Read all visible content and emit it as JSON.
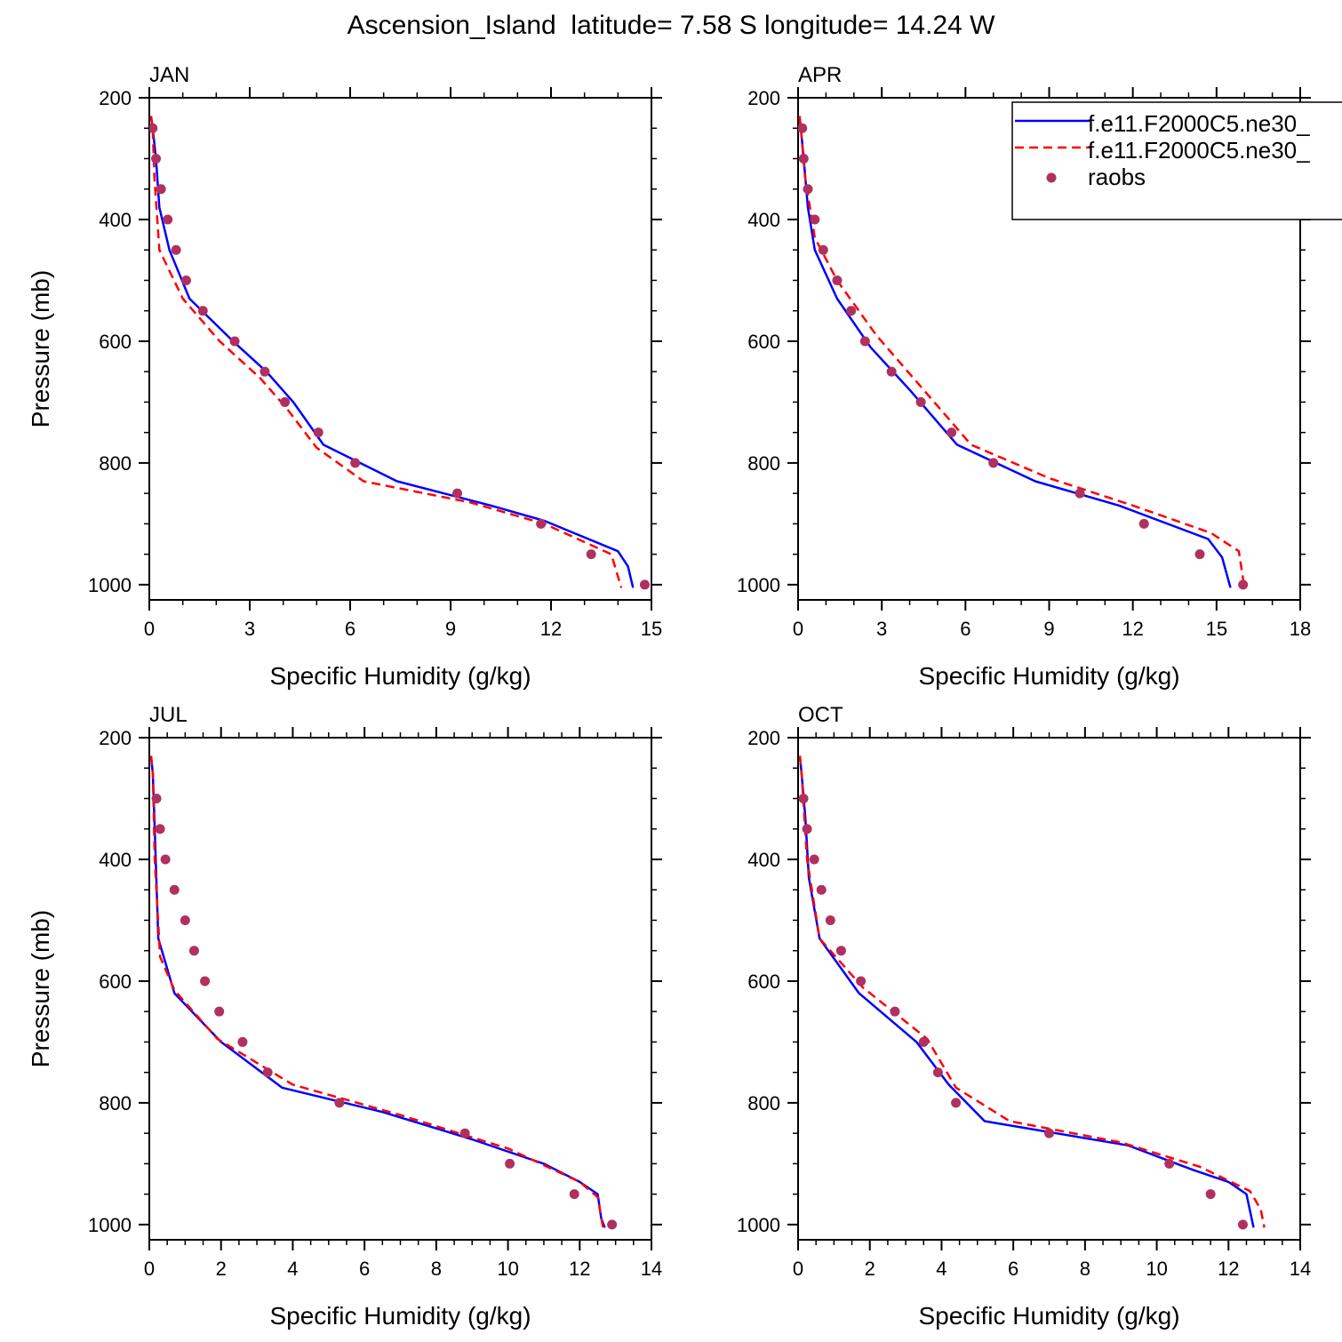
{
  "title": "Ascension_Island  latitude= 7.58 S longitude= 14.24 W",
  "colors": {
    "model_a": "#0000ff",
    "model_b": "#ff0000",
    "obs": "#b03060"
  },
  "legend": {
    "entries": [
      {
        "label": "f.e11.F2000C5.ne30_",
        "style": "solid"
      },
      {
        "label": "f.e11.F2000C5.ne30_",
        "style": "dashed"
      },
      {
        "label": "raobs",
        "style": "dot"
      }
    ]
  },
  "chart_data": [
    {
      "type": "line",
      "title": "JAN",
      "xlabel": "Specific Humidity (g/kg)",
      "ylabel": "Pressure (mb)",
      "xlim": [
        0,
        15
      ],
      "xticks": [
        0,
        3,
        6,
        9,
        12,
        15
      ],
      "ylim": [
        200,
        1025
      ],
      "yticks": [
        200,
        400,
        600,
        800,
        1000
      ],
      "y_inverted": true,
      "series": [
        {
          "style": "solid",
          "x": [
            0.05,
            0.1,
            0.2,
            0.3,
            0.6,
            1.2,
            2.5,
            3.5,
            4.3,
            5.2,
            7.4,
            10.2,
            11.8,
            14.0,
            14.3,
            14.45
          ],
          "y": [
            230,
            250,
            300,
            380,
            450,
            530,
            600,
            650,
            700,
            770,
            830,
            870,
            895,
            945,
            970,
            1005
          ]
        },
        {
          "style": "dashed",
          "x": [
            0.05,
            0.1,
            0.15,
            0.3,
            1.0,
            2.1,
            3.3,
            4.1,
            5.0,
            6.4,
            9.6,
            11.8,
            13.8,
            14.1
          ],
          "y": [
            230,
            250,
            330,
            450,
            530,
            600,
            660,
            710,
            775,
            830,
            865,
            900,
            950,
            1005
          ]
        },
        {
          "style": "dot",
          "x": [
            0.1,
            0.2,
            0.35,
            0.55,
            0.8,
            1.1,
            1.6,
            2.55,
            3.45,
            4.05,
            5.05,
            6.15,
            9.2,
            11.7,
            13.2,
            14.8
          ],
          "y": [
            250,
            300,
            350,
            400,
            450,
            500,
            550,
            600,
            650,
            700,
            750,
            800,
            850,
            900,
            950,
            1000
          ]
        }
      ]
    },
    {
      "type": "line",
      "title": "APR",
      "xlabel": "Specific Humidity (g/kg)",
      "ylabel": "",
      "xlim": [
        0,
        18
      ],
      "xticks": [
        0,
        3,
        6,
        9,
        12,
        15,
        18
      ],
      "ylim": [
        200,
        1025
      ],
      "yticks": [
        200,
        400,
        600,
        800,
        1000
      ],
      "y_inverted": true,
      "series": [
        {
          "style": "solid",
          "x": [
            0.05,
            0.1,
            0.2,
            0.35,
            0.6,
            1.4,
            2.6,
            4.0,
            5.7,
            8.5,
            11.5,
            14.7,
            15.2,
            15.5
          ],
          "y": [
            230,
            250,
            300,
            380,
            450,
            530,
            610,
            680,
            770,
            830,
            870,
            925,
            955,
            1005
          ]
        },
        {
          "style": "dashed",
          "x": [
            0.05,
            0.1,
            0.25,
            0.6,
            1.4,
            2.8,
            4.5,
            6.2,
            9.0,
            12.0,
            14.8,
            15.8,
            16.0
          ],
          "y": [
            230,
            250,
            330,
            430,
            500,
            590,
            680,
            770,
            825,
            870,
            915,
            945,
            1005
          ]
        },
        {
          "style": "dot",
          "x": [
            0.15,
            0.2,
            0.35,
            0.6,
            0.9,
            1.4,
            1.9,
            2.4,
            3.35,
            4.4,
            5.5,
            7.0,
            10.1,
            12.4,
            14.4,
            15.95
          ],
          "y": [
            250,
            300,
            350,
            400,
            450,
            500,
            550,
            600,
            650,
            700,
            750,
            800,
            850,
            900,
            950,
            1000
          ]
        }
      ]
    },
    {
      "type": "line",
      "title": "JUL",
      "xlabel": "Specific Humidity (g/kg)",
      "ylabel": "Pressure (mb)",
      "xlim": [
        0,
        14
      ],
      "xticks": [
        0,
        2,
        4,
        6,
        8,
        10,
        12,
        14
      ],
      "ylim": [
        200,
        1025
      ],
      "yticks": [
        200,
        400,
        600,
        800,
        1000
      ],
      "y_inverted": true,
      "series": [
        {
          "style": "solid",
          "x": [
            0.05,
            0.1,
            0.15,
            0.25,
            0.7,
            2.0,
            3.7,
            6.5,
            9.0,
            11.0,
            12.0,
            12.5,
            12.6,
            12.7
          ],
          "y": [
            230,
            260,
            350,
            530,
            620,
            700,
            775,
            815,
            860,
            900,
            930,
            950,
            990,
            1005
          ]
        },
        {
          "style": "dashed",
          "x": [
            0.05,
            0.1,
            0.15,
            0.3,
            0.7,
            1.9,
            4.0,
            7.0,
            10.0,
            12.0,
            12.5,
            12.65
          ],
          "y": [
            230,
            260,
            400,
            560,
            615,
            695,
            770,
            820,
            875,
            930,
            955,
            1005
          ]
        },
        {
          "style": "dot",
          "x": [
            0.2,
            0.3,
            0.45,
            0.7,
            1.0,
            1.25,
            1.55,
            1.95,
            2.6,
            3.3,
            5.3,
            8.8,
            10.05,
            11.85,
            12.9
          ],
          "y": [
            300,
            350,
            400,
            450,
            500,
            550,
            600,
            650,
            700,
            750,
            800,
            850,
            900,
            950,
            1000
          ]
        }
      ]
    },
    {
      "type": "line",
      "title": "OCT",
      "xlabel": "Specific Humidity (g/kg)",
      "ylabel": "",
      "xlim": [
        0,
        14
      ],
      "xticks": [
        0,
        2,
        4,
        6,
        8,
        10,
        12,
        14
      ],
      "ylim": [
        200,
        1025
      ],
      "yticks": [
        200,
        400,
        600,
        800,
        1000
      ],
      "y_inverted": true,
      "series": [
        {
          "style": "solid",
          "x": [
            0.05,
            0.1,
            0.2,
            0.3,
            0.6,
            1.7,
            3.3,
            4.2,
            5.2,
            9.2,
            11.0,
            12.0,
            12.5,
            12.7
          ],
          "y": [
            230,
            260,
            330,
            430,
            530,
            620,
            700,
            770,
            830,
            870,
            910,
            930,
            950,
            1005
          ]
        },
        {
          "style": "dashed",
          "x": [
            0.05,
            0.1,
            0.25,
            0.6,
            1.8,
            3.6,
            4.4,
            5.9,
            9.0,
            11.2,
            12.6,
            12.9,
            13.0
          ],
          "y": [
            230,
            260,
            400,
            530,
            610,
            695,
            775,
            830,
            865,
            905,
            945,
            975,
            1005
          ]
        },
        {
          "style": "dot",
          "x": [
            0.15,
            0.25,
            0.45,
            0.65,
            0.9,
            1.2,
            1.75,
            2.7,
            3.5,
            3.9,
            4.4,
            7.0,
            10.35,
            11.5,
            12.4
          ],
          "y": [
            300,
            350,
            400,
            450,
            500,
            550,
            600,
            650,
            700,
            750,
            800,
            850,
            900,
            950,
            1000
          ]
        }
      ]
    }
  ]
}
